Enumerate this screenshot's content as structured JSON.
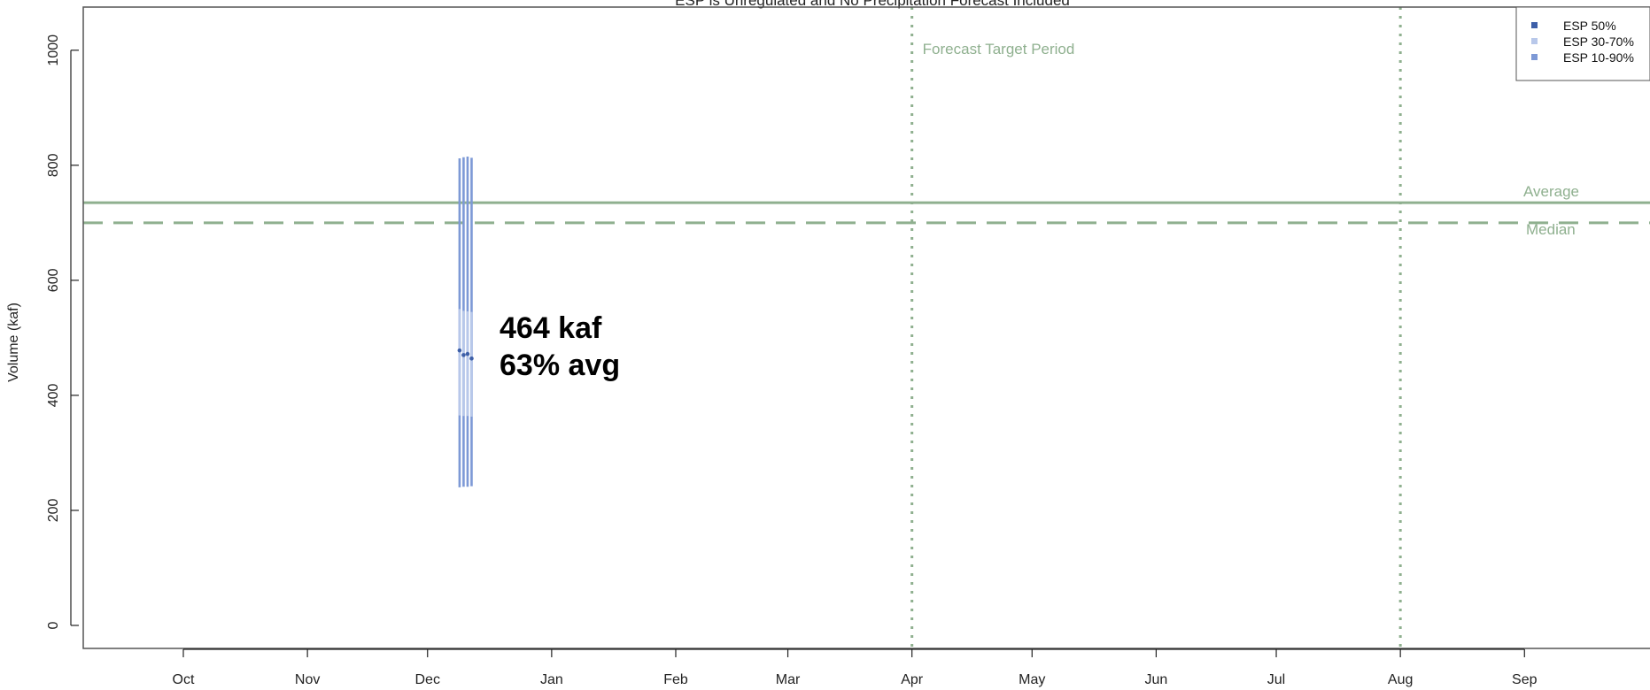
{
  "chart_data": {
    "type": "line",
    "title": "ESP is Unregulated and No Precipitation Forecast Included",
    "ylabel": "Volume (kaf)",
    "xlabel": "",
    "ylim": [
      -40,
      1075
    ],
    "yticks": [
      0,
      200,
      400,
      600,
      800,
      1000
    ],
    "xlim_days": [
      -25,
      371
    ],
    "months": [
      {
        "label": "Oct",
        "day": 0
      },
      {
        "label": "Nov",
        "day": 31
      },
      {
        "label": "Dec",
        "day": 61
      },
      {
        "label": "Jan",
        "day": 92
      },
      {
        "label": "Feb",
        "day": 123
      },
      {
        "label": "Mar",
        "day": 151
      },
      {
        "label": "Apr",
        "day": 182
      },
      {
        "label": "May",
        "day": 212
      },
      {
        "label": "Jun",
        "day": 243
      },
      {
        "label": "Jul",
        "day": 273
      },
      {
        "label": "Aug",
        "day": 304
      },
      {
        "label": "Sep",
        "day": 335
      }
    ],
    "grid": false,
    "legend_position": "top-right",
    "legend": [
      {
        "label": "ESP 50%",
        "color": "#3d5fa8"
      },
      {
        "label": "ESP 30-70%",
        "color": "#b8c8ea"
      },
      {
        "label": "ESP 10-90%",
        "color": "#7d99d6"
      }
    ],
    "reference_lines": {
      "average": {
        "label": "Average",
        "value": 735,
        "color": "#8fb08f"
      },
      "median": {
        "label": "Median",
        "value": 700,
        "color": "#8fb08f"
      }
    },
    "forecast_period": {
      "label": "Forecast Target Period",
      "start_day": 182,
      "end_day": 304,
      "color": "#8fb08f"
    },
    "forecasts": [
      {
        "day": 69,
        "p10": 240,
        "p30": 365,
        "p50": 478,
        "p70": 550,
        "p90": 812
      },
      {
        "day": 70,
        "p10": 241,
        "p30": 364,
        "p50": 470,
        "p70": 547,
        "p90": 814
      },
      {
        "day": 71,
        "p10": 241,
        "p30": 364,
        "p50": 472,
        "p70": 546,
        "p90": 815
      },
      {
        "day": 72,
        "p10": 242,
        "p30": 363,
        "p50": 464,
        "p70": 545,
        "p90": 813
      }
    ],
    "annotation": {
      "line1": "464 kaf",
      "line2": "63% avg"
    }
  }
}
